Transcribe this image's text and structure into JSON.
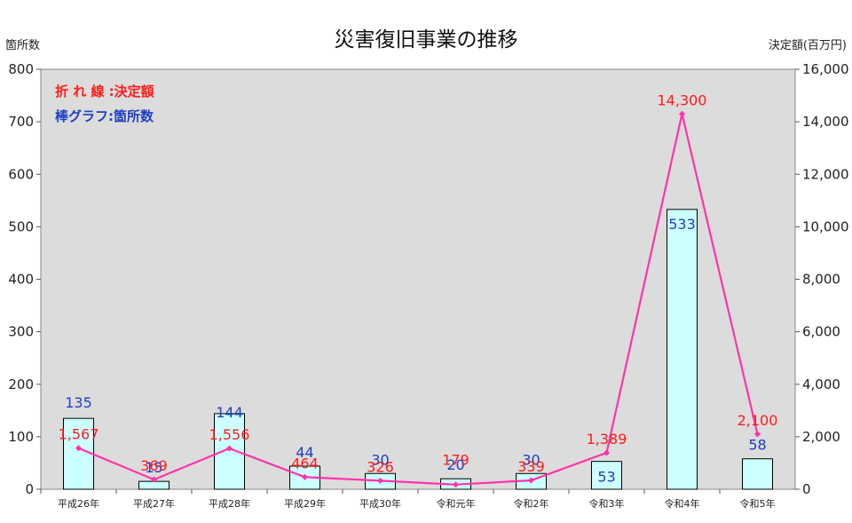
{
  "chart_data": {
    "type": "bar",
    "title": "災害復旧事業の推移",
    "y_left_label": "箇所数",
    "y_right_label": "決定額(百万円)",
    "categories": [
      "平成26年",
      "平成27年",
      "平成28年",
      "平成29年",
      "平成30年",
      "令和元年",
      "令和2年",
      "令和3年",
      "令和4年",
      "令和5年"
    ],
    "series": [
      {
        "name": "棒グラフ:箇所数",
        "type": "bar",
        "axis": "left",
        "values": [
          135,
          15,
          144,
          44,
          30,
          20,
          30,
          53,
          533,
          58
        ],
        "labels": [
          "135",
          "15",
          "144",
          "44",
          "30",
          "20",
          "30",
          "53",
          "533",
          "58"
        ]
      },
      {
        "name": "折れ線:決定額",
        "type": "line",
        "axis": "right",
        "values": [
          1567,
          369,
          1556,
          464,
          326,
          179,
          339,
          1389,
          14300,
          2100
        ],
        "labels": [
          "1,567",
          "369",
          "1,556",
          "464",
          "326",
          "179",
          "339",
          "1,389",
          "14,300",
          "2,100"
        ]
      }
    ],
    "legend": {
      "line_text": "折 れ 線 :決定額",
      "bar_text": "棒グラフ:箇所数"
    },
    "ylim_left": [
      0,
      800
    ],
    "ylim_right": [
      0,
      16000
    ],
    "left_ticks": [
      "0",
      "100",
      "200",
      "300",
      "400",
      "500",
      "600",
      "700",
      "800"
    ],
    "right_ticks": [
      "0",
      "2,000",
      "4,000",
      "6,000",
      "8,000",
      "10,000",
      "12,000",
      "14,000",
      "16,000"
    ],
    "grid": false,
    "colors": {
      "plot_bg": "#dcdcdc",
      "bar_fill": "#ccffff",
      "bar_stroke": "#000000",
      "line": "#ff33aa",
      "line_label": "#ff1a1a",
      "bar_label": "#1f3fc0"
    }
  }
}
